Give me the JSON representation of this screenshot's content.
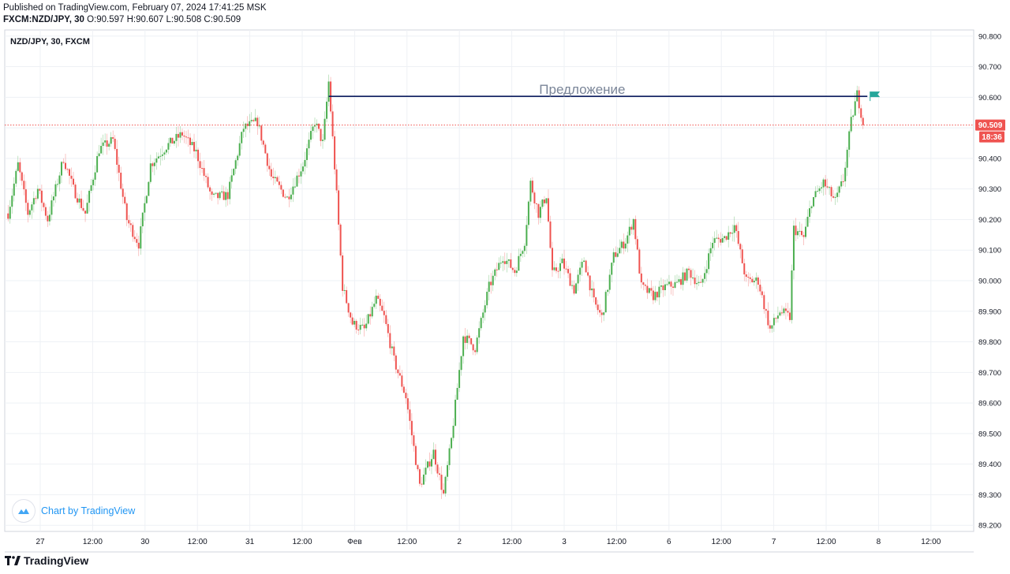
{
  "header": {
    "published": "Published on TradingView.com, February 07, 2024 17:41:25 MSK",
    "symbol_line": "FXCM:NZD/JPY, 30",
    "ohlc": "O:90.597 H:90.607 L:90.508 C:90.509"
  },
  "legend": "NZD/JPY, 30, FXCM",
  "badge": "Chart by TradingView",
  "footer_logo": "TradingView",
  "colors": {
    "up": "#26a69a",
    "up_candle": "#4caf50",
    "down": "#ef5350",
    "line": "#0c1c5e",
    "price_label": "#ef5350",
    "grid": "#eef1f5",
    "axis_text": "#131722"
  },
  "chart_data": {
    "type": "candlestick",
    "ylim": [
      89.18,
      90.82
    ],
    "y_ticks": [
      "90.800",
      "90.700",
      "90.600",
      "90.500",
      "90.400",
      "90.300",
      "90.200",
      "90.100",
      "90.000",
      "89.900",
      "89.800",
      "89.700",
      "89.600",
      "89.500",
      "89.400",
      "89.300",
      "89.200"
    ],
    "x_ticks": [
      "27",
      "12:00",
      "30",
      "12:00",
      "31",
      "12:00",
      "Фев",
      "12:00",
      "2",
      "12:00",
      "3",
      "12:00",
      "6",
      "12:00",
      "7",
      "12:00",
      "8",
      "12:00"
    ],
    "last_price": "90.509",
    "countdown": "18:36",
    "horizontal_line": {
      "label": "Предложение",
      "price": 90.603
    },
    "anchors": [
      [
        0,
        90.22
      ],
      [
        5,
        90.38
      ],
      [
        10,
        90.22
      ],
      [
        15,
        90.3
      ],
      [
        20,
        90.2
      ],
      [
        28,
        90.4
      ],
      [
        33,
        90.3
      ],
      [
        39,
        90.22
      ],
      [
        46,
        90.43
      ],
      [
        53,
        90.46
      ],
      [
        60,
        90.2
      ],
      [
        66,
        90.12
      ],
      [
        72,
        90.38
      ],
      [
        80,
        90.44
      ],
      [
        88,
        90.48
      ],
      [
        95,
        90.42
      ],
      [
        103,
        90.27
      ],
      [
        111,
        90.28
      ],
      [
        119,
        90.5
      ],
      [
        126,
        90.52
      ],
      [
        133,
        90.34
      ],
      [
        141,
        90.27
      ],
      [
        149,
        90.38
      ],
      [
        155,
        90.52
      ],
      [
        159,
        90.45
      ],
      [
        162,
        90.65
      ],
      [
        166,
        90.28
      ],
      [
        169,
        89.98
      ],
      [
        174,
        89.86
      ],
      [
        180,
        89.84
      ],
      [
        186,
        89.94
      ],
      [
        190,
        89.88
      ],
      [
        195,
        89.74
      ],
      [
        201,
        89.62
      ],
      [
        208,
        89.33
      ],
      [
        215,
        89.44
      ],
      [
        220,
        89.3
      ],
      [
        224,
        89.48
      ],
      [
        230,
        89.82
      ],
      [
        236,
        89.78
      ],
      [
        243,
        89.98
      ],
      [
        250,
        90.08
      ],
      [
        256,
        90.03
      ],
      [
        261,
        90.13
      ],
      [
        264,
        90.32
      ],
      [
        268,
        90.22
      ],
      [
        272,
        90.28
      ],
      [
        275,
        90.02
      ],
      [
        280,
        90.06
      ],
      [
        286,
        89.97
      ],
      [
        291,
        90.07
      ],
      [
        296,
        89.93
      ],
      [
        300,
        89.88
      ],
      [
        306,
        90.08
      ],
      [
        312,
        90.13
      ],
      [
        316,
        90.2
      ],
      [
        320,
        89.98
      ],
      [
        326,
        89.95
      ],
      [
        332,
        89.98
      ],
      [
        338,
        89.99
      ],
      [
        344,
        90.03
      ],
      [
        350,
        89.98
      ],
      [
        356,
        90.13
      ],
      [
        362,
        90.14
      ],
      [
        367,
        90.18
      ],
      [
        373,
        90.0
      ],
      [
        379,
        90.0
      ],
      [
        385,
        89.84
      ],
      [
        390,
        89.9
      ],
      [
        395,
        89.88
      ],
      [
        397,
        90.17
      ],
      [
        402,
        90.14
      ],
      [
        406,
        90.26
      ],
      [
        412,
        90.32
      ],
      [
        418,
        90.26
      ],
      [
        422,
        90.33
      ],
      [
        426,
        90.52
      ],
      [
        429,
        90.61
      ],
      [
        432,
        90.52
      ]
    ],
    "total_bars": 433
  }
}
